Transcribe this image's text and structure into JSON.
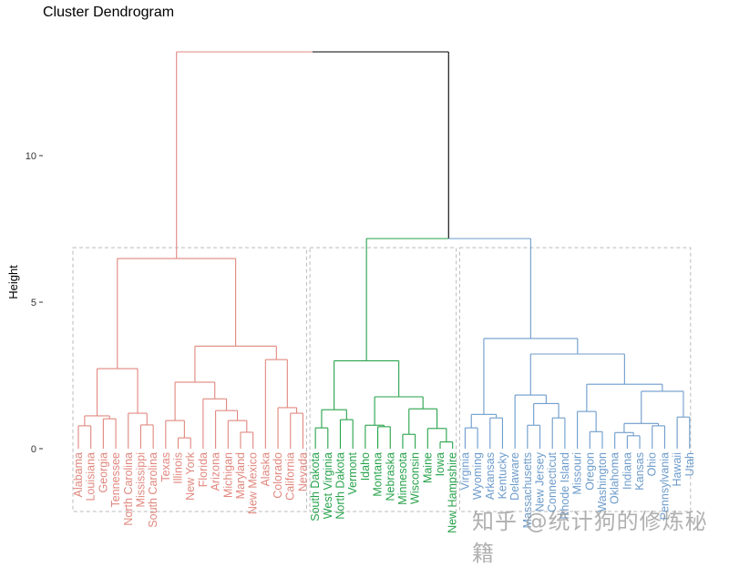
{
  "chart_data": {
    "type": "dendrogram",
    "title": "Cluster Dendrogram",
    "xlabel": "",
    "ylabel": "Height",
    "ylim": [
      0,
      13.6
    ],
    "yticks": [
      0,
      5,
      10
    ],
    "grid": false,
    "k_clusters": 3,
    "cluster_colors": [
      "#E0877E",
      "#26A24A",
      "#6C9BCB"
    ],
    "root_color": "#000000",
    "box_color": "#BBBBBB",
    "box_height": 6.86,
    "tree": {
      "h": 13.54,
      "c": [
        {
          "h": 6.49,
          "cluster": 0,
          "c": [
            {
              "h": 2.73,
              "c": [
                {
                  "h": 1.12,
                  "c": [
                    {
                      "h": 0.78,
                      "c": [
                        "Alabama",
                        "Louisiana"
                      ]
                    },
                    {
                      "h": 1.02,
                      "c": [
                        "Georgia",
                        "Tennessee"
                      ]
                    }
                  ]
                },
                {
                  "h": 1.21,
                  "c": [
                    "North Carolina",
                    {
                      "h": 0.81,
                      "c": [
                        "Mississippi",
                        "South Carolina"
                      ]
                    }
                  ]
                }
              ]
            },
            {
              "h": 3.5,
              "c": [
                {
                  "h": 2.27,
                  "c": [
                    {
                      "h": 0.96,
                      "c": [
                        "Texas",
                        {
                          "h": 0.37,
                          "c": [
                            "Illinois",
                            "New York"
                          ]
                        }
                      ]
                    },
                    {
                      "h": 1.7,
                      "c": [
                        "Florida",
                        {
                          "h": 1.3,
                          "c": [
                            "Arizona",
                            {
                              "h": 0.96,
                              "c": [
                                "Michigan",
                                {
                                  "h": 0.56,
                                  "c": [
                                    "Maryland",
                                    "New Mexico"
                                  ]
                                }
                              ]
                            }
                          ]
                        }
                      ]
                    }
                  ]
                },
                {
                  "h": 3.04,
                  "c": [
                    "Alaska",
                    {
                      "h": 1.4,
                      "c": [
                        "Colorado",
                        {
                          "h": 1.21,
                          "c": [
                            "California",
                            "Nevada"
                          ]
                        }
                      ]
                    }
                  ]
                }
              ]
            }
          ]
        },
        {
          "h": 7.17,
          "c": [
            {
              "h": 3.0,
              "cluster": 1,
              "c": [
                {
                  "h": 1.33,
                  "c": [
                    {
                      "h": 0.71,
                      "c": [
                        "South Dakota",
                        "West Virginia"
                      ]
                    },
                    {
                      "h": 0.99,
                      "c": [
                        "North Dakota",
                        "Vermont"
                      ]
                    }
                  ]
                },
                {
                  "h": 1.77,
                  "c": [
                    {
                      "h": 0.8,
                      "c": [
                        "Idaho",
                        {
                          "h": 0.75,
                          "c": [
                            "Montana",
                            "Nebraska"
                          ]
                        }
                      ]
                    },
                    {
                      "h": 1.36,
                      "c": [
                        {
                          "h": 0.49,
                          "c": [
                            "Minnesota",
                            "Wisconsin"
                          ]
                        },
                        {
                          "h": 0.69,
                          "c": [
                            "Maine",
                            {
                              "h": 0.23,
                              "c": [
                                "Iowa",
                                "New Hampshire"
                              ]
                            }
                          ]
                        }
                      ]
                    }
                  ]
                }
              ]
            },
            {
              "h": 3.76,
              "cluster": 2,
              "c": [
                {
                  "h": 1.17,
                  "c": [
                    {
                      "h": 0.71,
                      "c": [
                        "Virginia",
                        "Wyoming"
                      ]
                    },
                    {
                      "h": 1.05,
                      "c": [
                        "Arkansas",
                        "Kentucky"
                      ]
                    }
                  ]
                },
                {
                  "h": 3.23,
                  "c": [
                    {
                      "h": 1.83,
                      "c": [
                        "Delaware",
                        {
                          "h": 1.54,
                          "c": [
                            {
                              "h": 0.8,
                              "c": [
                                "Massachusetts",
                                "New Jersey"
                              ]
                            },
                            {
                              "h": 1.05,
                              "c": [
                                "Connecticut",
                                "Rhode Island"
                              ]
                            }
                          ]
                        }
                      ]
                    },
                    {
                      "h": 2.2,
                      "c": [
                        {
                          "h": 1.27,
                          "c": [
                            "Missouri",
                            {
                              "h": 0.58,
                              "c": [
                                "Oregon",
                                "Washington"
                              ]
                            }
                          ]
                        },
                        {
                          "h": 1.96,
                          "c": [
                            {
                              "h": 0.86,
                              "c": [
                                {
                                  "h": 0.55,
                                  "c": [
                                    "Oklahoma",
                                    {
                                      "h": 0.44,
                                      "c": [
                                        "Indiana",
                                        "Kansas"
                                      ]
                                    }
                                  ]
                                },
                                {
                                  "h": 0.78,
                                  "c": [
                                    "Ohio",
                                    "Pennsylvania"
                                  ]
                                }
                              ]
                            },
                            {
                              "h": 1.08,
                              "c": [
                                "Hawaii",
                                "Utah"
                              ]
                            }
                          ]
                        }
                      ]
                    }
                  ]
                }
              ]
            }
          ]
        }
      ]
    }
  },
  "watermark": "知乎 @统计狗的修炼秘籍"
}
